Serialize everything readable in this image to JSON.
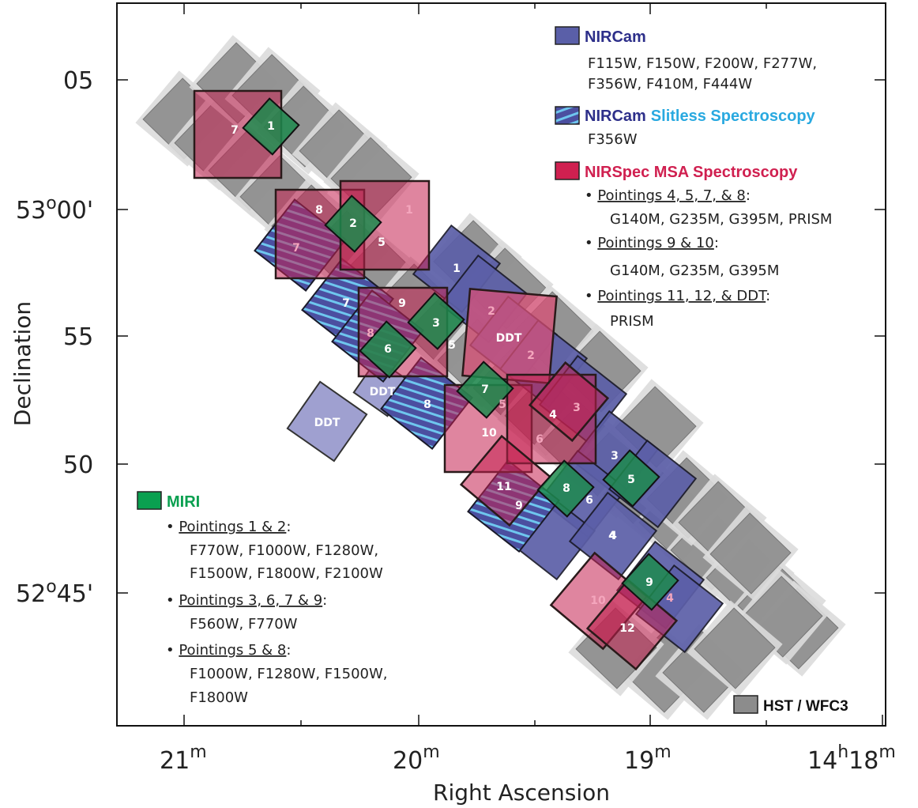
{
  "axes": {
    "x_label": "Right Ascension",
    "y_label": "Declination",
    "x_ticks": [
      {
        "main": "21",
        "sup": "m"
      },
      {
        "main": "20",
        "sup": "m"
      },
      {
        "main": "19",
        "sup": "m"
      },
      {
        "main": "14",
        "sup": "h",
        "main2": "18",
        "sup2": "m"
      }
    ],
    "y_ticks": [
      {
        "main": "05",
        "sup": ""
      },
      {
        "main": "53",
        "sup": "o",
        "rest": "00'"
      },
      {
        "main": "55",
        "sup": ""
      },
      {
        "main": "50",
        "sup": ""
      },
      {
        "main": "52",
        "sup": "o",
        "rest": "45'"
      }
    ]
  },
  "legend_nircam": {
    "title": "NIRCam",
    "line1": "F115W, F150W, F200W, F277W,",
    "line2": "F356W, F410M, F444W",
    "color": "#4b4fa0"
  },
  "legend_slitless": {
    "title_a": "NIRCam",
    "title_b": "Slitless Spectroscopy",
    "line1": "F356W",
    "color_b": "#29a9e0"
  },
  "legend_nirspec": {
    "title": "NIRSpec MSA Spectroscopy",
    "color": "#d02050",
    "items": [
      {
        "head": "Pointings 4, 5, 7, & 8",
        "tail": ":",
        "body": "G140M, G235M, G395M, PRISM"
      },
      {
        "head": "Pointings 9 & 10",
        "tail": ":",
        "body": "G140M, G235M, G395M"
      },
      {
        "head": "Pointings 11, 12, & DDT",
        "tail": ":",
        "body": "PRISM"
      }
    ]
  },
  "legend_miri": {
    "title": "MIRI",
    "color": "#0aa050",
    "items": [
      {
        "head": "Pointings 1 & 2",
        "tail": ":",
        "body1": "F770W, F1000W, F1280W,",
        "body2": "F1500W, F1800W, F2100W"
      },
      {
        "head": "Pointings 3, 6, 7 & 9",
        "tail": ":",
        "body1": "F560W, F770W",
        "body2": ""
      },
      {
        "head": "Pointings 5 & 8",
        "tail": ":",
        "body1": "F1000W, F1280W, F1500W,",
        "body2": "F1800W"
      }
    ]
  },
  "legend_hst": {
    "title": "HST / WFC3"
  },
  "labels": {
    "nircam": [
      "1",
      "2",
      "3",
      "4",
      "5",
      "6",
      "DDT",
      "DDT"
    ],
    "slitless": [
      "7",
      "7",
      "8",
      "8",
      "9"
    ],
    "nirspec": [
      "7",
      "8",
      "1",
      "5",
      "9",
      "5",
      "2",
      "DDT",
      "2",
      "7",
      "10",
      "4",
      "3",
      "11",
      "10",
      "12",
      "4",
      "5",
      "6",
      "DDT"
    ],
    "miri": [
      "1",
      "2",
      "3",
      "6",
      "7",
      "8",
      "5",
      "9"
    ]
  }
}
